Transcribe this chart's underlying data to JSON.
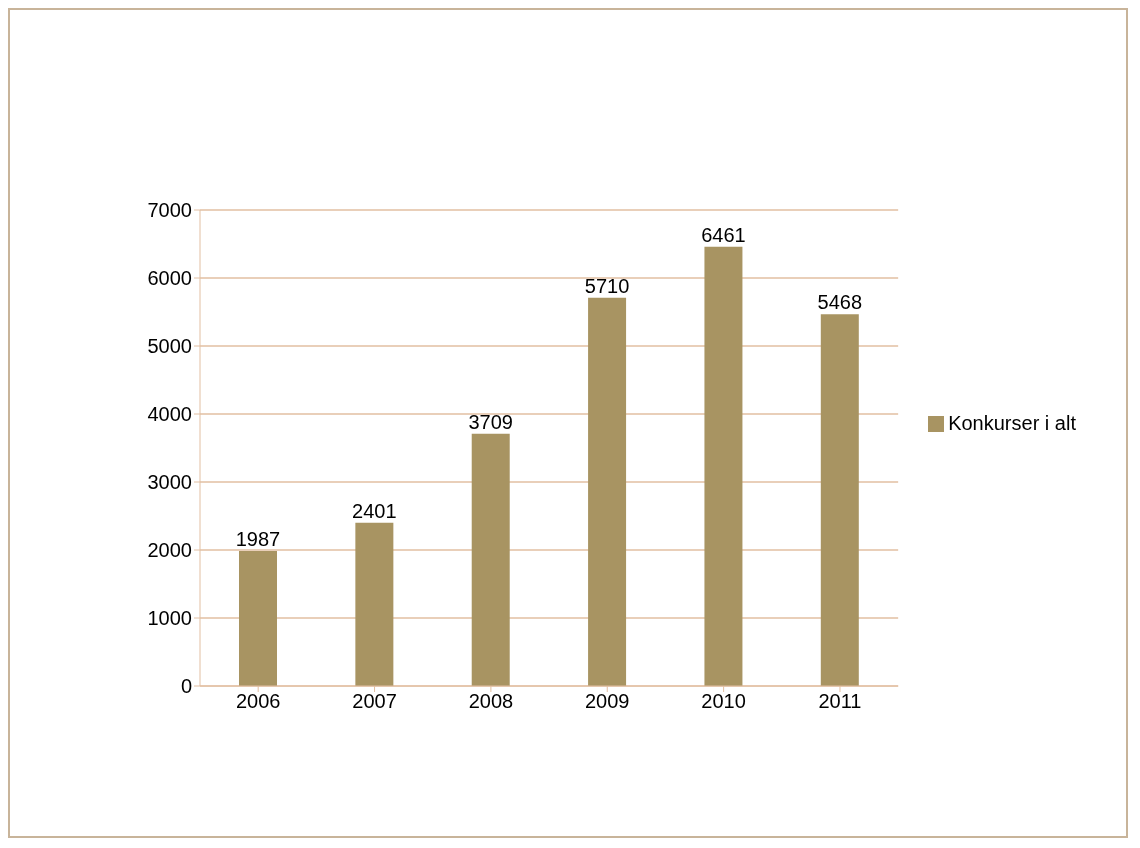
{
  "chart_data": {
    "type": "bar",
    "categories": [
      "2006",
      "2007",
      "2008",
      "2009",
      "2010",
      "2011"
    ],
    "series": [
      {
        "name": "Konkurser i alt",
        "color": "#a89462",
        "values": [
          1987,
          2401,
          3709,
          5710,
          6461,
          5468
        ]
      }
    ],
    "ylim": [
      0,
      7000
    ],
    "yticks": [
      0,
      1000,
      2000,
      3000,
      4000,
      5000,
      6000,
      7000
    ],
    "grid": "y",
    "legend": "right",
    "data_labels": true
  }
}
